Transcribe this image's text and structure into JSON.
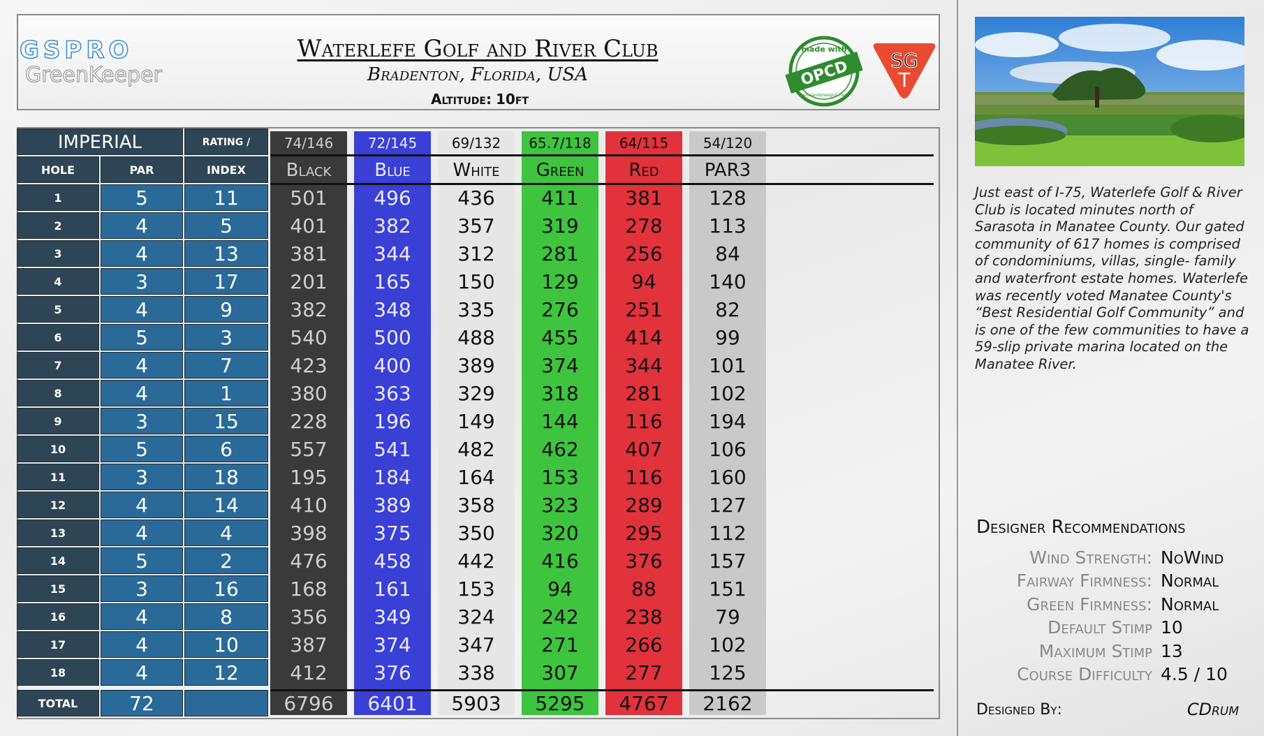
{
  "header": {
    "logo_line1": "GSPRO",
    "logo_line2": "GreenKeeper",
    "course_name": "Waterlefe Golf and River Club",
    "location": "Bradenton, Florida, USA",
    "altitude_label": "Altitude:",
    "altitude_value": "10ft",
    "opcd_badge": {
      "top_text": "made with",
      "center_text": "OPCD",
      "bottom_text": "zerosandonesgcd.com"
    },
    "sgt_badge": {
      "line1": "SG",
      "line2": "T"
    }
  },
  "scorecard": {
    "units_label": "IMPERIAL",
    "rating_slope_label": "RATING / SLOPE",
    "hole_label": "HOLE",
    "par_label": "PAR",
    "index_label": "INDEX",
    "total_label": "TOTAL",
    "par_total": "72",
    "holes": [
      "1",
      "2",
      "3",
      "4",
      "5",
      "6",
      "7",
      "8",
      "9",
      "10",
      "11",
      "12",
      "13",
      "14",
      "15",
      "16",
      "17",
      "18"
    ],
    "pars": [
      "5",
      "4",
      "4",
      "3",
      "4",
      "5",
      "4",
      "4",
      "3",
      "5",
      "3",
      "4",
      "4",
      "5",
      "3",
      "4",
      "4",
      "4"
    ],
    "indexes": [
      "11",
      "5",
      "13",
      "17",
      "9",
      "3",
      "7",
      "1",
      "15",
      "6",
      "18",
      "14",
      "4",
      "2",
      "16",
      "8",
      "10",
      "12"
    ],
    "tees": [
      {
        "name": "Black",
        "rating_slope": "74/146",
        "yards": [
          "501",
          "401",
          "381",
          "201",
          "382",
          "540",
          "423",
          "380",
          "228",
          "557",
          "195",
          "410",
          "398",
          "476",
          "168",
          "356",
          "387",
          "412"
        ],
        "total": "6796",
        "bg": "#3a3a3a",
        "fg": "#cfcfcf"
      },
      {
        "name": "Blue",
        "rating_slope": "72/145",
        "yards": [
          "496",
          "382",
          "344",
          "165",
          "348",
          "500",
          "400",
          "363",
          "196",
          "541",
          "184",
          "389",
          "375",
          "458",
          "161",
          "349",
          "374",
          "376"
        ],
        "total": "6401",
        "bg": "#3a3fd6",
        "fg": "#e8ecff"
      },
      {
        "name": "White",
        "rating_slope": "69/132",
        "yards": [
          "436",
          "357",
          "312",
          "150",
          "335",
          "488",
          "389",
          "329",
          "149",
          "482",
          "164",
          "358",
          "350",
          "442",
          "153",
          "324",
          "347",
          "338"
        ],
        "total": "5903",
        "bg": "#e6e6e6",
        "fg": "#111111"
      },
      {
        "name": "Green",
        "rating_slope": "65.7/118",
        "yards": [
          "411",
          "319",
          "281",
          "129",
          "276",
          "455",
          "374",
          "318",
          "144",
          "462",
          "153",
          "323",
          "320",
          "416",
          "94",
          "242",
          "271",
          "307"
        ],
        "total": "5295",
        "bg": "#3ec43e",
        "fg": "#111111"
      },
      {
        "name": "Red",
        "rating_slope": "64/115",
        "yards": [
          "381",
          "278",
          "256",
          "94",
          "251",
          "414",
          "344",
          "281",
          "116",
          "407",
          "116",
          "289",
          "295",
          "376",
          "88",
          "238",
          "266",
          "277"
        ],
        "total": "4767",
        "bg": "#e2323c",
        "fg": "#111111"
      },
      {
        "name": "PAR3",
        "rating_slope": "54/120",
        "yards": [
          "128",
          "113",
          "84",
          "140",
          "82",
          "99",
          "101",
          "102",
          "194",
          "106",
          "160",
          "127",
          "112",
          "157",
          "151",
          "79",
          "102",
          "125"
        ],
        "total": "2162",
        "bg": "#c9c9c9",
        "fg": "#111111"
      }
    ]
  },
  "description": "Just east of I-75, Waterlefe Golf & River Club is located minutes north of Sarasota in Manatee County. Our gated community of 617 homes is comprised of condominiums, villas, single- family and waterfront estate homes. Waterlefe was recently voted Manatee County's “Best Residential Golf Community” and is one of the few communities to have a 59-slip private marina located on the Manatee River.",
  "recommendations": {
    "title": "Designer Recommendations",
    "items": [
      {
        "label": "Wind Strength:",
        "value": "NoWind"
      },
      {
        "label": "Fairway Firmness:",
        "value": "Normal"
      },
      {
        "label": "Green Firmness:",
        "value": "Normal"
      },
      {
        "label": "Default Stimp",
        "value": "10"
      },
      {
        "label": "Maximum Stimp",
        "value": "13"
      },
      {
        "label": "Course Difficulty",
        "value": "4.5 / 10"
      }
    ]
  },
  "designed_by": {
    "label": "Designed By:",
    "value": "CDrum"
  }
}
